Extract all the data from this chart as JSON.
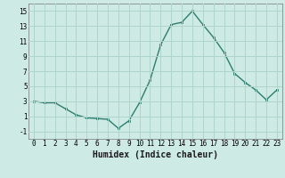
{
  "xlabel": "Humidex (Indice chaleur)",
  "x": [
    0,
    1,
    2,
    3,
    4,
    5,
    6,
    7,
    8,
    9,
    10,
    11,
    12,
    13,
    14,
    15,
    16,
    17,
    18,
    19,
    20,
    21,
    22,
    23
  ],
  "y": [
    3.0,
    2.8,
    2.8,
    2.0,
    1.2,
    0.8,
    0.7,
    0.6,
    -0.6,
    0.4,
    2.8,
    5.8,
    10.5,
    13.2,
    13.5,
    15.0,
    13.2,
    11.5,
    9.5,
    6.7,
    5.5,
    4.5,
    3.2,
    4.5
  ],
  "line_color": "#2e7d6e",
  "bg_color": "#cdeae5",
  "grid_color": "#aed4cc",
  "ylim": [
    -2,
    16
  ],
  "yticks": [
    -1,
    1,
    3,
    5,
    7,
    9,
    11,
    13,
    15
  ],
  "xticks": [
    0,
    1,
    2,
    3,
    4,
    5,
    6,
    7,
    8,
    9,
    10,
    11,
    12,
    13,
    14,
    15,
    16,
    17,
    18,
    19,
    20,
    21,
    22,
    23
  ],
  "tick_fontsize": 5.5,
  "xlabel_fontsize": 7.0
}
